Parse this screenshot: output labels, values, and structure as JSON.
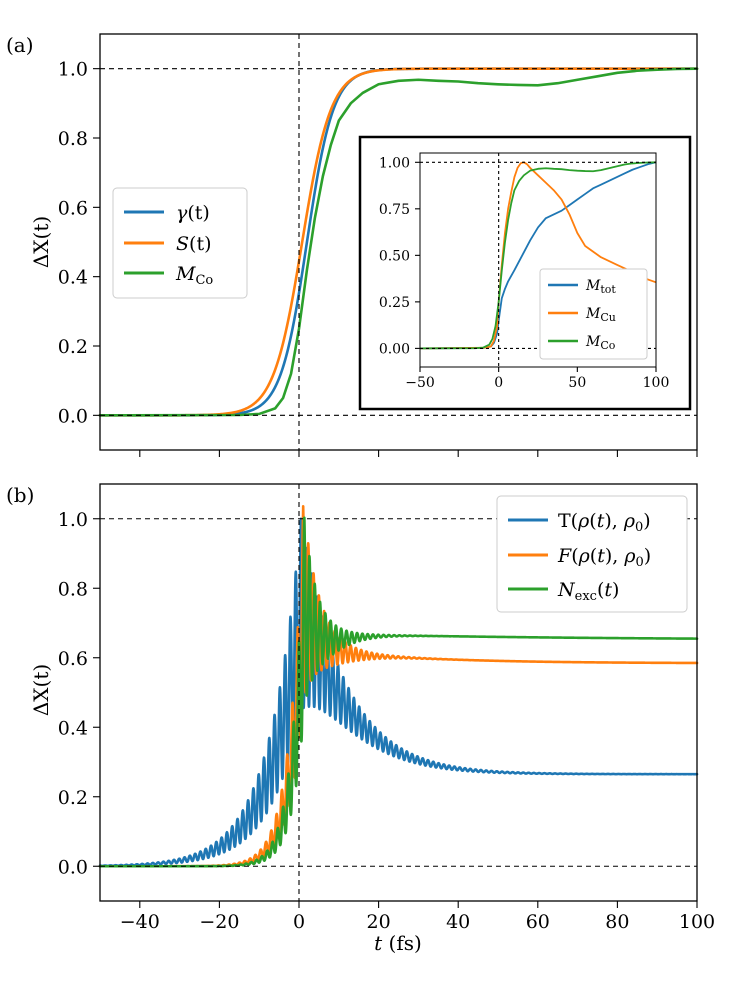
{
  "figure": {
    "colors": {
      "blue": "#1f77b4",
      "orange": "#ff7f0e",
      "green": "#2ca02c"
    }
  },
  "chart_data": [
    {
      "type": "line",
      "panel_label": "(a)",
      "xlim": [
        -50,
        100
      ],
      "ylim": [
        -0.1,
        1.1
      ],
      "x_ticks": [
        -40,
        -20,
        0,
        20,
        40,
        60,
        80,
        100
      ],
      "x_tick_labels_shown": false,
      "y_ticks": [
        0.0,
        0.2,
        0.4,
        0.6,
        0.8,
        1.0
      ],
      "y_tick_labels": [
        "0.0",
        "0.2",
        "0.4",
        "0.6",
        "0.8",
        "1.0"
      ],
      "ylabel": {
        "base": "ΔX(t)"
      },
      "reference_lines": {
        "hline": [
          0.0,
          1.0
        ],
        "vline": [
          0.0
        ]
      },
      "legend": {
        "location": "center-left"
      },
      "series": [
        {
          "name": "γ(t)",
          "label_parts": [
            "γ",
            "(t)"
          ],
          "color": "#1f77b4",
          "model": {
            "kind": "logistic",
            "center": 2.0,
            "width": 3.3
          }
        },
        {
          "name": "S(t)",
          "label_parts": [
            "S",
            "(t)"
          ],
          "color": "#ff7f0e",
          "model": {
            "kind": "logistic",
            "center": 0.8,
            "width": 3.6
          }
        },
        {
          "name": "M_Co",
          "label_parts": [
            "M",
            "Co"
          ],
          "color": "#2ca02c",
          "points": [
            [
              -50,
              0
            ],
            [
              -15,
              0.001
            ],
            [
              -10,
              0.004
            ],
            [
              -6,
              0.02
            ],
            [
              -4,
              0.05
            ],
            [
              -2,
              0.12
            ],
            [
              0,
              0.25
            ],
            [
              2,
              0.42
            ],
            [
              4,
              0.57
            ],
            [
              6,
              0.69
            ],
            [
              8,
              0.78
            ],
            [
              10,
              0.85
            ],
            [
              13,
              0.9
            ],
            [
              16,
              0.93
            ],
            [
              20,
              0.955
            ],
            [
              25,
              0.965
            ],
            [
              30,
              0.968
            ],
            [
              35,
              0.965
            ],
            [
              40,
              0.963
            ],
            [
              45,
              0.958
            ],
            [
              50,
              0.955
            ],
            [
              55,
              0.953
            ],
            [
              60,
              0.952
            ],
            [
              65,
              0.958
            ],
            [
              70,
              0.968
            ],
            [
              75,
              0.978
            ],
            [
              80,
              0.988
            ],
            [
              85,
              0.994
            ],
            [
              90,
              0.997
            ],
            [
              95,
              0.999
            ],
            [
              100,
              1.0
            ]
          ]
        }
      ],
      "inset": {
        "xlim": [
          -50,
          100
        ],
        "ylim": [
          -0.1,
          1.05
        ],
        "x_ticks": [
          -50,
          0,
          50,
          100
        ],
        "x_tick_labels": [
          "−50",
          "0",
          "50",
          "100"
        ],
        "y_ticks": [
          0.0,
          0.25,
          0.5,
          0.75,
          1.0
        ],
        "y_tick_labels": [
          "0.00",
          "0.25",
          "0.50",
          "0.75",
          "1.00"
        ],
        "reference_lines": {
          "hline": [
            0.0,
            1.0
          ],
          "vline": [
            0.0
          ]
        },
        "legend": {
          "location": "lower-right"
        },
        "series": [
          {
            "name": "M_tot",
            "label_parts": [
              "M",
              "tot"
            ],
            "color": "#1f77b4",
            "points": [
              [
                -50,
                0
              ],
              [
                -10,
                0.002
              ],
              [
                -5,
                0.01
              ],
              [
                -3,
                0.03
              ],
              [
                -1,
                0.08
              ],
              [
                0,
                0.15
              ],
              [
                2,
                0.27
              ],
              [
                4,
                0.32
              ],
              [
                6,
                0.36
              ],
              [
                10,
                0.42
              ],
              [
                15,
                0.5
              ],
              [
                20,
                0.58
              ],
              [
                25,
                0.65
              ],
              [
                30,
                0.7
              ],
              [
                35,
                0.72
              ],
              [
                40,
                0.74
              ],
              [
                45,
                0.77
              ],
              [
                50,
                0.8
              ],
              [
                55,
                0.83
              ],
              [
                60,
                0.86
              ],
              [
                65,
                0.88
              ],
              [
                70,
                0.9
              ],
              [
                75,
                0.92
              ],
              [
                80,
                0.94
              ],
              [
                85,
                0.96
              ],
              [
                90,
                0.975
              ],
              [
                95,
                0.99
              ],
              [
                100,
                1.0
              ]
            ]
          },
          {
            "name": "M_Cu",
            "label_parts": [
              "M",
              "Cu"
            ],
            "color": "#ff7f0e",
            "points": [
              [
                -50,
                0
              ],
              [
                -10,
                0.003
              ],
              [
                -5,
                0.01
              ],
              [
                -3,
                0.04
              ],
              [
                -1,
                0.12
              ],
              [
                0,
                0.25
              ],
              [
                2,
                0.45
              ],
              [
                4,
                0.62
              ],
              [
                6,
                0.75
              ],
              [
                8,
                0.84
              ],
              [
                10,
                0.92
              ],
              [
                12,
                0.97
              ],
              [
                14,
                0.995
              ],
              [
                16,
                1.0
              ],
              [
                18,
                0.99
              ],
              [
                20,
                0.97
              ],
              [
                25,
                0.93
              ],
              [
                30,
                0.89
              ],
              [
                35,
                0.85
              ],
              [
                40,
                0.8
              ],
              [
                45,
                0.72
              ],
              [
                50,
                0.62
              ],
              [
                55,
                0.55
              ],
              [
                60,
                0.52
              ],
              [
                65,
                0.49
              ],
              [
                70,
                0.47
              ],
              [
                75,
                0.45
              ],
              [
                80,
                0.43
              ],
              [
                85,
                0.41
              ],
              [
                90,
                0.39
              ],
              [
                95,
                0.37
              ],
              [
                100,
                0.355
              ]
            ]
          },
          {
            "name": "M_Co",
            "label_parts": [
              "M",
              "Co"
            ],
            "color": "#2ca02c",
            "points": [
              [
                -50,
                0
              ],
              [
                -15,
                0.001
              ],
              [
                -10,
                0.004
              ],
              [
                -6,
                0.02
              ],
              [
                -4,
                0.05
              ],
              [
                -2,
                0.12
              ],
              [
                0,
                0.25
              ],
              [
                2,
                0.42
              ],
              [
                4,
                0.57
              ],
              [
                6,
                0.69
              ],
              [
                8,
                0.78
              ],
              [
                10,
                0.85
              ],
              [
                13,
                0.9
              ],
              [
                16,
                0.93
              ],
              [
                20,
                0.955
              ],
              [
                25,
                0.965
              ],
              [
                30,
                0.968
              ],
              [
                35,
                0.965
              ],
              [
                40,
                0.963
              ],
              [
                45,
                0.958
              ],
              [
                50,
                0.955
              ],
              [
                55,
                0.953
              ],
              [
                60,
                0.952
              ],
              [
                65,
                0.958
              ],
              [
                70,
                0.968
              ],
              [
                75,
                0.978
              ],
              [
                80,
                0.988
              ],
              [
                85,
                0.994
              ],
              [
                90,
                0.997
              ],
              [
                95,
                0.999
              ],
              [
                100,
                1.0
              ]
            ]
          }
        ]
      }
    },
    {
      "type": "line",
      "panel_label": "(b)",
      "xlim": [
        -50,
        100
      ],
      "ylim": [
        -0.1,
        1.1
      ],
      "x_ticks": [
        -40,
        -20,
        0,
        20,
        40,
        60,
        80,
        100
      ],
      "x_tick_labels": [
        "−40",
        "−20",
        "0",
        "20",
        "40",
        "60",
        "80",
        "100"
      ],
      "y_ticks": [
        0.0,
        0.2,
        0.4,
        0.6,
        0.8,
        1.0
      ],
      "y_tick_labels": [
        "0.0",
        "0.2",
        "0.4",
        "0.6",
        "0.8",
        "1.0"
      ],
      "xlabel": {
        "italic": "t",
        "rest": " (fs)"
      },
      "ylabel": {
        "base": "ΔX(t)"
      },
      "reference_lines": {
        "hline": [
          0.0,
          1.0
        ],
        "vline": [
          0.0
        ]
      },
      "legend": {
        "location": "top-right"
      },
      "series": [
        {
          "name": "T(ρ(t), ρ0)",
          "label_parts": [
            "T(",
            "ρ",
            "(",
            "t",
            "), ",
            "ρ",
            "0",
            ")"
          ],
          "color": "#1f77b4",
          "model": {
            "kind": "oscillating",
            "rise_tau": 8.0,
            "peak_t": 0.5,
            "decay_tau": 11.0,
            "final": 0.265,
            "peak": 1.0,
            "period": 1.33,
            "osc_decay_tau": 14.0
          }
        },
        {
          "name": "F(ρ(t), ρ0)",
          "label_parts": [
            "F",
            "(",
            "ρ",
            "(",
            "t",
            "), ",
            "ρ",
            "0",
            ")"
          ],
          "color": "#ff7f0e",
          "model": {
            "kind": "oscillating",
            "rise_tau": 3.5,
            "peak_t": 1.0,
            "decay_tau": 4.0,
            "final": 0.585,
            "peak": 1.0,
            "period": 1.33,
            "osc_decay_tau": 6.0,
            "slow_tau": 25.0,
            "slow_amp": 0.05
          }
        },
        {
          "name": "N_exc(t)",
          "label_parts": [
            "N",
            "exc",
            "(",
            "t",
            ")"
          ],
          "color": "#2ca02c",
          "model": {
            "kind": "oscillating",
            "rise_tau": 3.0,
            "peak_t": 1.3,
            "decay_tau": 3.0,
            "final": 0.655,
            "peak": 1.0,
            "period": 1.33,
            "osc_decay_tau": 5.0,
            "slow_tau": 60.0,
            "slow_amp": 0.02
          }
        }
      ]
    }
  ]
}
